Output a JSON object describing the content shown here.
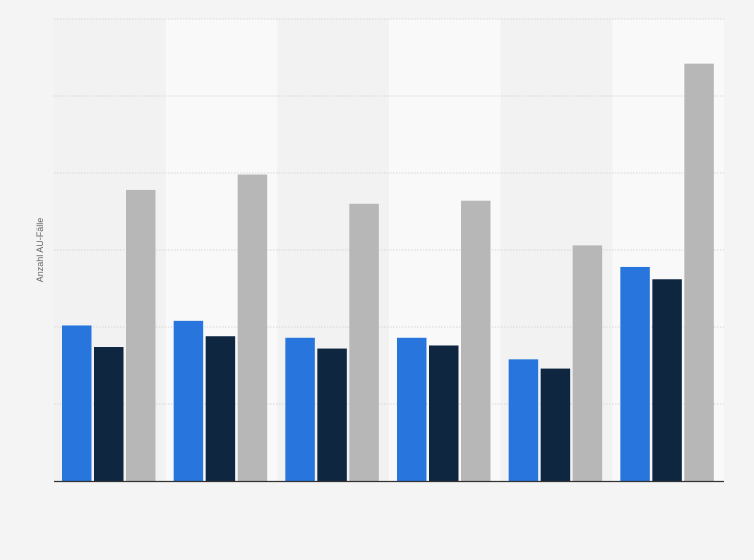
{
  "chart_data": {
    "type": "bar",
    "title": "",
    "xlabel": "",
    "ylabel": "Anzahl AU-Fälle",
    "categories": [
      "",
      "",
      "",
      "",
      "",
      ""
    ],
    "series": [
      {
        "values": [
          2.02,
          2.08,
          1.86,
          1.86,
          1.58,
          2.78
        ]
      },
      {
        "values": [
          1.74,
          1.88,
          1.72,
          1.76,
          1.46,
          2.62
        ]
      },
      {
        "values": [
          3.78,
          3.98,
          3.6,
          3.64,
          3.06,
          5.42
        ]
      }
    ],
    "ylim": [
      0,
      6
    ],
    "grid": true,
    "colors": [
      "#2876dd",
      "#0f2640",
      "#b7b7b7"
    ],
    "band_colors": [
      "#f2f2f2",
      "#f9f9f9"
    ],
    "grid_color": "#d6d6d6",
    "axis_color": "#333333"
  }
}
